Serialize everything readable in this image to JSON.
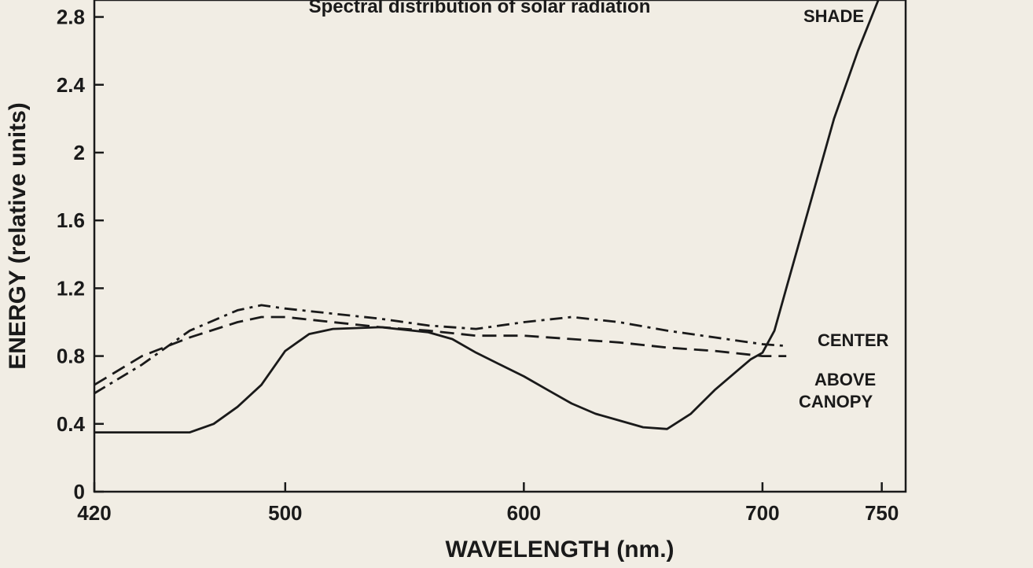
{
  "chart_data": {
    "type": "line",
    "title": "",
    "xlabel": "WAVELENGTH (nm.)",
    "ylabel": "ENERGY (relative units)",
    "xlim": [
      420,
      760
    ],
    "ylim": [
      0,
      2.9
    ],
    "xticks": [
      420,
      500,
      600,
      700,
      750
    ],
    "yticks": [
      0,
      0.4,
      0.8,
      1.2,
      1.6,
      2,
      2.4,
      2.8
    ],
    "ytick_labels": [
      "0",
      "0.4",
      "0.8",
      "1.2",
      "1.6",
      "2",
      "2.4",
      "2.8"
    ],
    "series": [
      {
        "name": "SHADE",
        "style": "solid",
        "x": [
          420,
          440,
          460,
          470,
          480,
          490,
          500,
          510,
          520,
          540,
          560,
          570,
          580,
          590,
          600,
          610,
          620,
          630,
          640,
          650,
          660,
          670,
          680,
          690,
          695,
          700,
          705,
          710,
          720,
          730,
          740,
          750
        ],
        "y": [
          0.35,
          0.35,
          0.35,
          0.4,
          0.5,
          0.63,
          0.83,
          0.93,
          0.96,
          0.97,
          0.94,
          0.9,
          0.82,
          0.75,
          0.68,
          0.6,
          0.52,
          0.46,
          0.42,
          0.38,
          0.37,
          0.46,
          0.6,
          0.72,
          0.78,
          0.82,
          0.95,
          1.2,
          1.7,
          2.2,
          2.6,
          2.95
        ]
      },
      {
        "name": "CENTER",
        "style": "dashed",
        "x": [
          420,
          440,
          460,
          480,
          490,
          500,
          520,
          540,
          560,
          580,
          600,
          620,
          640,
          660,
          680,
          700,
          710
        ],
        "y": [
          0.63,
          0.8,
          0.91,
          1.0,
          1.03,
          1.03,
          1.0,
          0.97,
          0.95,
          0.92,
          0.92,
          0.9,
          0.88,
          0.85,
          0.83,
          0.8,
          0.8
        ]
      },
      {
        "name": "ABOVE CANOPY",
        "style": "dashdot",
        "x": [
          420,
          440,
          460,
          480,
          490,
          500,
          520,
          540,
          560,
          580,
          600,
          620,
          640,
          660,
          680,
          700,
          710
        ],
        "y": [
          0.58,
          0.75,
          0.95,
          1.07,
          1.1,
          1.08,
          1.05,
          1.02,
          0.98,
          0.96,
          1.0,
          1.03,
          1.0,
          0.95,
          0.91,
          0.87,
          0.86
        ]
      }
    ],
    "annotations": [
      {
        "text": "SHADE",
        "series": "SHADE"
      },
      {
        "text": "CENTER",
        "series": "CENTER"
      },
      {
        "text": "ABOVE",
        "series": "ABOVE CANOPY"
      },
      {
        "text": "CANOPY",
        "series": "ABOVE CANOPY"
      }
    ],
    "grid": false,
    "legend": "none",
    "top_caption": "Spectral distribution of solar radiation"
  }
}
